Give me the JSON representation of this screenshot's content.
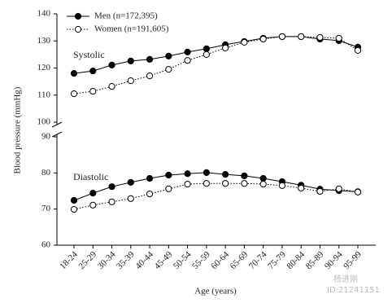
{
  "chart_data": [
    {
      "type": "line",
      "annotation": "Systolic",
      "ylim": [
        100,
        140
      ],
      "yticks": [
        100,
        110,
        120,
        130,
        140
      ],
      "series": [
        {
          "name": "Men (n=172,395)",
          "color": "#000000",
          "marker_fill": "#000000",
          "linestyle": "solid",
          "values": [
            118.0,
            118.9,
            121.1,
            122.6,
            123.2,
            124.4,
            125.9,
            127.1,
            128.6,
            129.8,
            131.0,
            131.6,
            131.6,
            130.7,
            130.1,
            127.7
          ]
        },
        {
          "name": "Women (n=191,605)",
          "color": "#000000",
          "marker_fill": "#ffffff",
          "linestyle": "dotted",
          "values": [
            110.5,
            111.4,
            113.2,
            115.3,
            117.1,
            119.5,
            122.8,
            125.0,
            127.4,
            129.5,
            130.7,
            131.6,
            131.6,
            131.3,
            131.0,
            126.5
          ]
        }
      ]
    },
    {
      "type": "line",
      "annotation": "Diastolic",
      "ylim": [
        60,
        90
      ],
      "yticks": [
        60,
        70,
        80,
        90
      ],
      "xlabel": "Age (years)",
      "ylabel": "Blood pressure (mmHg)",
      "categories": [
        "18-24",
        "25-29",
        "30-34",
        "35-39",
        "40-44",
        "45-49",
        "50-54",
        "55-59",
        "60-64",
        "65-69",
        "70-74",
        "75-79",
        "80-84",
        "85-89",
        "90-94",
        "95-99"
      ],
      "series": [
        {
          "values": [
            72.4,
            74.4,
            76.2,
            77.4,
            78.5,
            79.4,
            79.8,
            80.1,
            79.6,
            79.2,
            78.5,
            77.6,
            76.6,
            75.5,
            75.1,
            74.8
          ]
        },
        {
          "values": [
            69.9,
            71.1,
            72.0,
            72.9,
            74.2,
            75.6,
            76.9,
            77.1,
            77.1,
            77.1,
            76.9,
            76.5,
            75.8,
            74.9,
            75.6,
            74.7
          ]
        }
      ]
    }
  ],
  "watermark": [
    "杨进刚",
    "ID:21241151"
  ]
}
